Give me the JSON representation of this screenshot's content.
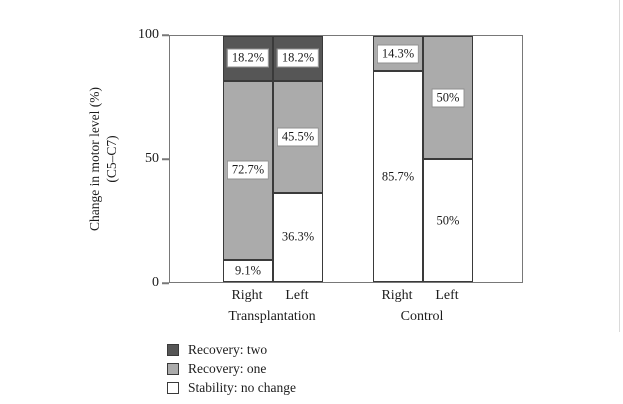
{
  "axis": {
    "ylabel_line1": "Change in motor level (%)",
    "ylabel_line2": "(C5–C7)",
    "yticks": [
      {
        "value": 0,
        "label": "0"
      },
      {
        "value": 50,
        "label": "50"
      },
      {
        "value": 100,
        "label": "100"
      }
    ]
  },
  "colors": {
    "Stability: no change": "#ffffff",
    "Recovery: one": "#ababab",
    "Recovery: two": "#565656",
    "bar_border": "#3a3a3a",
    "frame": "#787878",
    "text": "#1c1c1c"
  },
  "chart_data": {
    "type": "bar",
    "stacked": true,
    "title": "",
    "xlabel": "",
    "ylabel": "Change in motor level (%) (C5–C7)",
    "ylim": [
      0,
      100
    ],
    "yticks": [
      0,
      50,
      100
    ],
    "grid": false,
    "legend_position": "bottom-left",
    "group_labels": [
      "Transplantation",
      "Control"
    ],
    "categories": [
      "Right",
      "Left",
      "Right",
      "Left"
    ],
    "series": [
      {
        "name": "Stability: no change",
        "values": [
          9.1,
          36.3,
          85.7,
          50
        ]
      },
      {
        "name": "Recovery: one",
        "values": [
          72.7,
          45.5,
          14.3,
          50
        ]
      },
      {
        "name": "Recovery: two",
        "values": [
          18.2,
          18.2,
          0,
          0
        ]
      }
    ],
    "groups": [
      {
        "label": "Transplantation",
        "bars": [
          {
            "label": "Right",
            "segments": [
              {
                "series": "Stability: no change",
                "value": 9.1,
                "text": "9.1%"
              },
              {
                "series": "Recovery: one",
                "value": 72.7,
                "text": "72.7%"
              },
              {
                "series": "Recovery: two",
                "value": 18.2,
                "text": "18.2%"
              }
            ]
          },
          {
            "label": "Left",
            "segments": [
              {
                "series": "Stability: no change",
                "value": 36.3,
                "text": "36.3%"
              },
              {
                "series": "Recovery: one",
                "value": 45.5,
                "text": "45.5%"
              },
              {
                "series": "Recovery: two",
                "value": 18.2,
                "text": "18.2%"
              }
            ]
          }
        ]
      },
      {
        "label": "Control",
        "bars": [
          {
            "label": "Right",
            "segments": [
              {
                "series": "Stability: no change",
                "value": 85.7,
                "text": "85.7%"
              },
              {
                "series": "Recovery: one",
                "value": 14.3,
                "text": "14.3%"
              }
            ]
          },
          {
            "label": "Left",
            "segments": [
              {
                "series": "Stability: no change",
                "value": 50,
                "text": "50%"
              },
              {
                "series": "Recovery: one",
                "value": 50,
                "text": "50%"
              }
            ]
          }
        ]
      }
    ],
    "legend": [
      {
        "label": "Recovery: two",
        "series": "Recovery: two"
      },
      {
        "label": "Recovery: one",
        "series": "Recovery: one"
      },
      {
        "label": "Stability: no change",
        "series": "Stability: no change"
      }
    ]
  }
}
